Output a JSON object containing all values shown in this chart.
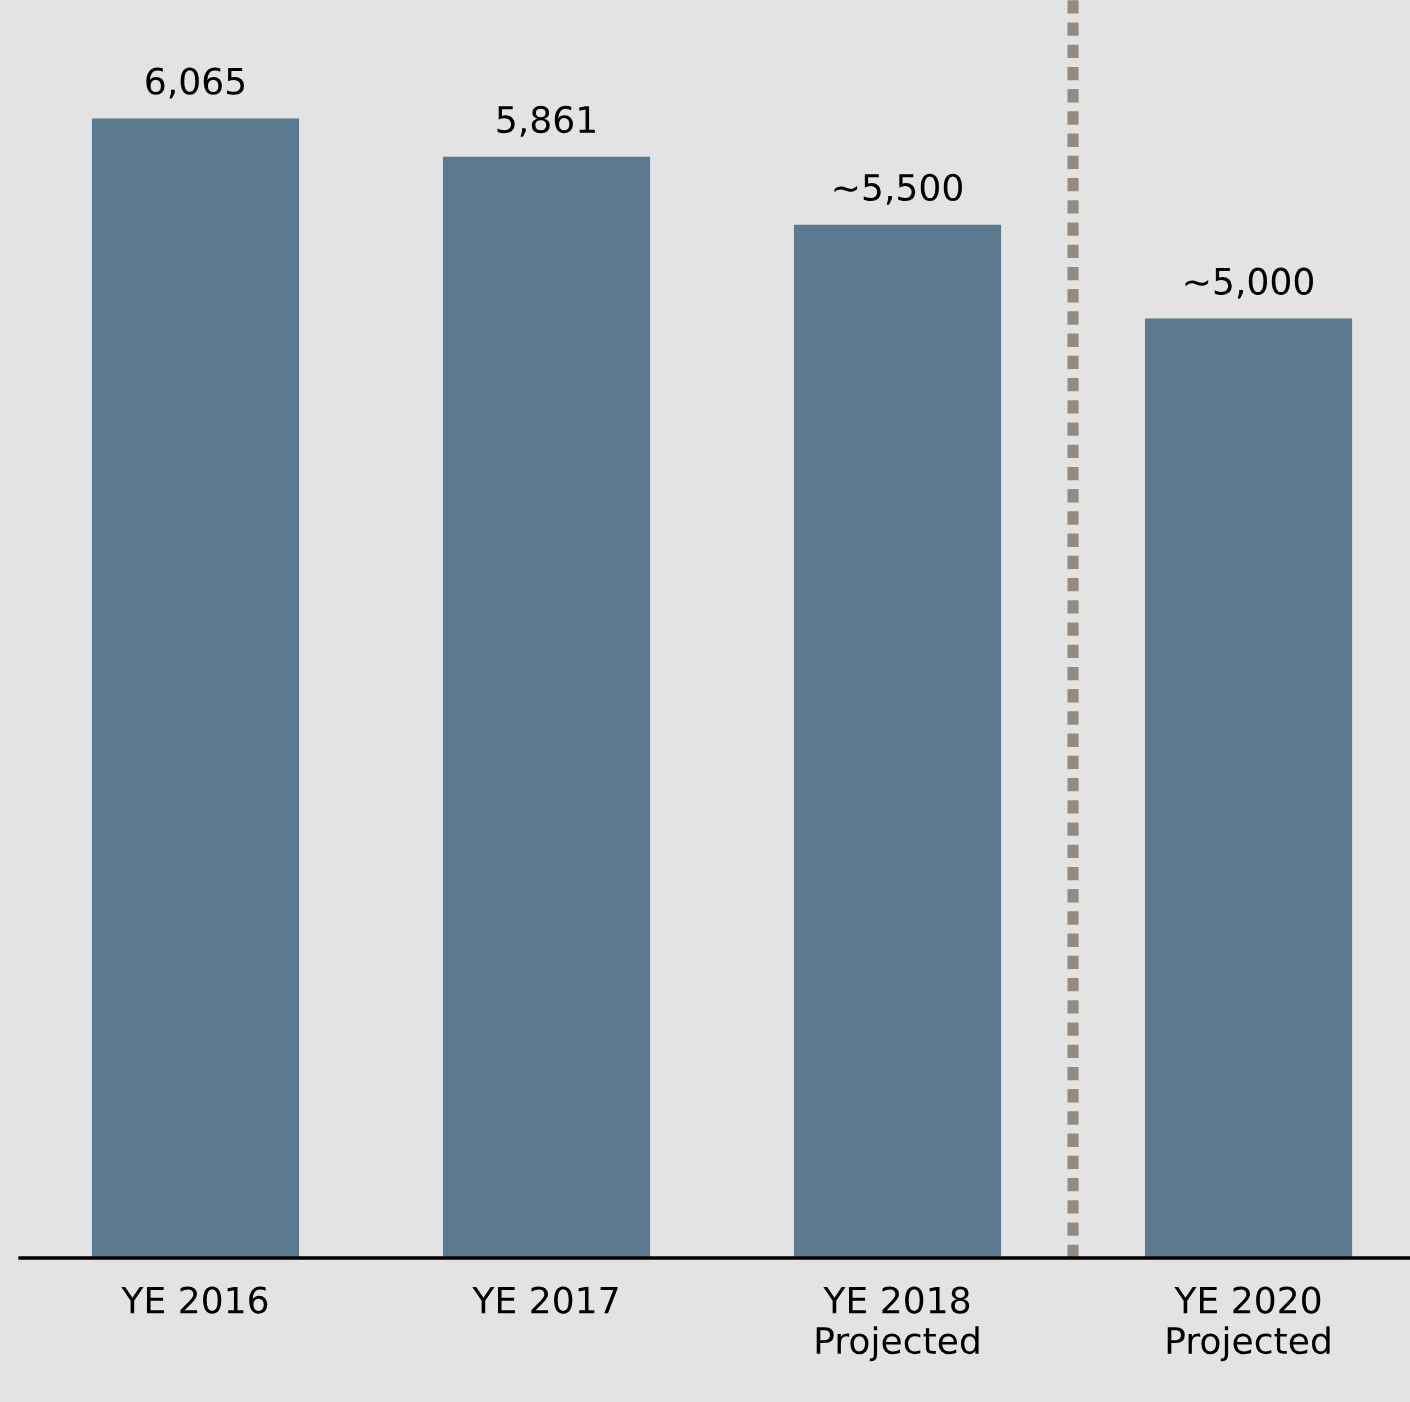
{
  "chart_data": {
    "type": "bar",
    "categories": [
      "YE 2016",
      "YE 2017",
      "YE 2018\nProjected",
      "YE 2020\nProjected"
    ],
    "values": [
      6065,
      5861,
      5500,
      5000
    ],
    "value_labels": [
      "6,065",
      "5,861",
      "~5,500",
      "~5,000"
    ],
    "color": "#5b7a8f",
    "grid": false,
    "legend": false
  }
}
